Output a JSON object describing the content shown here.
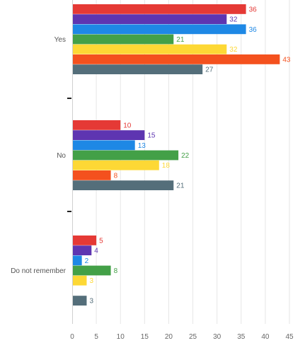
{
  "chart_data": {
    "type": "bar",
    "orientation": "horizontal",
    "categories": [
      "Yes",
      "No",
      "Do not remember"
    ],
    "series": [
      {
        "color": "#E53935",
        "values": [
          36,
          10,
          5
        ]
      },
      {
        "color": "#5E35B1",
        "values": [
          32,
          15,
          4
        ]
      },
      {
        "color": "#1E88E5",
        "values": [
          36,
          13,
          2
        ]
      },
      {
        "color": "#43A047",
        "values": [
          21,
          22,
          8
        ]
      },
      {
        "color": "#FDD835",
        "values": [
          32,
          18,
          3
        ]
      },
      {
        "color": "#F4511E",
        "values": [
          43,
          8,
          null
        ]
      },
      {
        "color": "#546E7A",
        "values": [
          27,
          21,
          3
        ]
      }
    ],
    "xlim": [
      0,
      45
    ],
    "x_ticks": [
      "0",
      "5",
      "10",
      "15",
      "20",
      "25",
      "30",
      "35",
      "40",
      "45"
    ],
    "grid": "vertical",
    "data_labels": true,
    "legend": "none"
  }
}
